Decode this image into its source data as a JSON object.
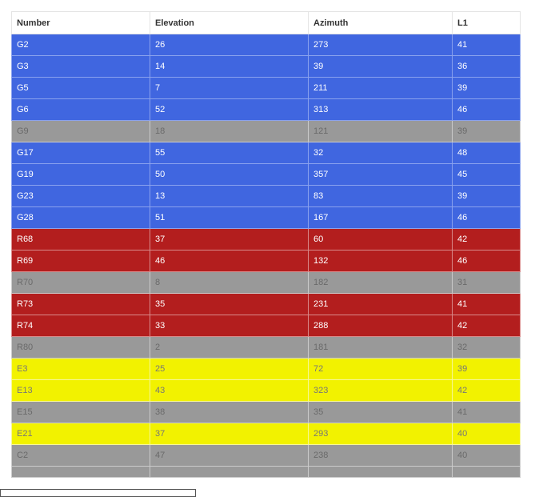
{
  "columns": [
    "Number",
    "Elevation",
    "Azimuth",
    "L1"
  ],
  "colors": {
    "blue": "#4066e0",
    "red": "#b31e1e",
    "gray": "#999999",
    "yellow": "#f2f200"
  },
  "rows": [
    {
      "cells": [
        "G2",
        "26",
        "273",
        "41"
      ],
      "status": "blue"
    },
    {
      "cells": [
        "G3",
        "14",
        "39",
        "36"
      ],
      "status": "blue"
    },
    {
      "cells": [
        "G5",
        "7",
        "211",
        "39"
      ],
      "status": "blue"
    },
    {
      "cells": [
        "G6",
        "52",
        "313",
        "46"
      ],
      "status": "blue"
    },
    {
      "cells": [
        "G9",
        "18",
        "121",
        "39"
      ],
      "status": "gray"
    },
    {
      "cells": [
        "G17",
        "55",
        "32",
        "48"
      ],
      "status": "blue"
    },
    {
      "cells": [
        "G19",
        "50",
        "357",
        "45"
      ],
      "status": "blue"
    },
    {
      "cells": [
        "G23",
        "13",
        "83",
        "39"
      ],
      "status": "blue"
    },
    {
      "cells": [
        "G28",
        "51",
        "167",
        "46"
      ],
      "status": "blue"
    },
    {
      "cells": [
        "R68",
        "37",
        "60",
        "42"
      ],
      "status": "red"
    },
    {
      "cells": [
        "R69",
        "46",
        "132",
        "46"
      ],
      "status": "red"
    },
    {
      "cells": [
        "R70",
        "8",
        "182",
        "31"
      ],
      "status": "gray"
    },
    {
      "cells": [
        "R73",
        "35",
        "231",
        "41"
      ],
      "status": "red"
    },
    {
      "cells": [
        "R74",
        "33",
        "288",
        "42"
      ],
      "status": "red"
    },
    {
      "cells": [
        "R80",
        "2",
        "181",
        "32"
      ],
      "status": "gray"
    },
    {
      "cells": [
        "E3",
        "25",
        "72",
        "39"
      ],
      "status": "yellow"
    },
    {
      "cells": [
        "E13",
        "43",
        "323",
        "42"
      ],
      "status": "yellow"
    },
    {
      "cells": [
        "E15",
        "38",
        "35",
        "41"
      ],
      "status": "gray"
    },
    {
      "cells": [
        "E21",
        "37",
        "293",
        "40"
      ],
      "status": "yellow"
    },
    {
      "cells": [
        "C2",
        "47",
        "238",
        "40"
      ],
      "status": "gray"
    }
  ]
}
